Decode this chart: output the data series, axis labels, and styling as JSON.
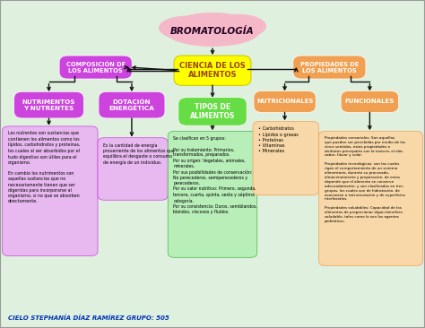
{
  "title": "BROMATOLOGÍA",
  "subtitle": "CIENCIA DE LOS\nALIMENTOS",
  "background_color": "#ffffff",
  "bg_color": "#e8f4e8",
  "composicion_text": "COMPOSICIÓN DE\nLOS ALIMENTOS",
  "composicion_color": "#cc44dd",
  "propiedades_text": "PROPIEDADES DE\nLOS ALIMENTOS",
  "propiedades_color": "#f0a050",
  "nutrimentos_text": "NUTRIMENTOS\nY NUTRENTES",
  "nutrimentos_color": "#cc44dd",
  "dotacion_text": "DOTACIÓN\nENERGÉTICA",
  "dotacion_color": "#cc44dd",
  "tipos_text": "TIPOS DE\nALIMENTOS",
  "tipos_color": "#66dd44",
  "nutricionales_text": "NUTRICIONALES",
  "nutricionales_color": "#f0a050",
  "funcionales_text": "FUNCIONALES",
  "funcionales_color": "#f0a050",
  "text_nutrimentos": "Los nutrentes son sustancias que\ncontienen los alimentos como los\nlípidos, carbohidratos y proteínas,\nlos cuales al ser absorbidos por el\ntudo digestivo son útiles para el\norganismo.\n\nEn cambio los nutrimentos son\naquellas sustancias que no\nnecesariamente tienen que ser\ndigeridas para incorporarse al\norganismo, si no que se absorben\ndirectamente.",
  "text_dotacion": "Es la cantidad de energía\nproveniente de los alimentos que\nequilibra el desgaste o consumo\nde energía de un individuo.",
  "text_nutricionales": "• Carbohidratos\n• Lípidos o grasas\n• Proteínas\n• Vitaminas\n• Minerales",
  "text_funcionales": "Propiedades sensoriales: Son aquellas\nque pueden ser percibidas por medio de los\ncinco sentidos, estas propiedades o\natributos principales son la textura, el olor,\nsabor, flavor y color.\n\nPropiedades tecnológicas: son las cuales\nrigen el comportamiento de un sistema\nalimentario, durante su procesado,\nalmacenamiento y preparación, de estos\ndepende que el alimento se conserve\nadecuadamente, y son clasificados en tres\ngrupos, los cuales son de hidratación, de\nasociación o estructuración y de superficies\ninterfaciales.\n\nPropiedades saludables: Capacidad de los\nalimentos de proporcionar algún beneficio\nsaludable, tales como lo son los agentes\nprebióticos.",
  "text_tipos": "Se clasifican en 5 grupos:\n\nPor su tratamiento: Primarios,\ntransformados, preparados.\nPor su origen: Vegetales, animales,\nminerales.\nPor sus posibilidades de conservación:\nNo perecederos, semiperecederos y\nperecederos.\nPor su valor nutritivo: Primero, segunda,\ntercera, cuarta, quinta, sexta y séptima\ncategoría.\nPor su consistencia: Duros, semiblandos,\nblandos, viscosos y fluidos.",
  "footer": "CIELO STEPHANÍA DÍAZ RAMÍREZ GRUPO: 505",
  "nutr_box_color": "#e8b8f0",
  "dot_box_color": "#e8b8f0",
  "tipos_box_color": "#b8eeb8",
  "nutr2_box_color": "#f8d8a8",
  "func_box_color": "#f8d8a8"
}
